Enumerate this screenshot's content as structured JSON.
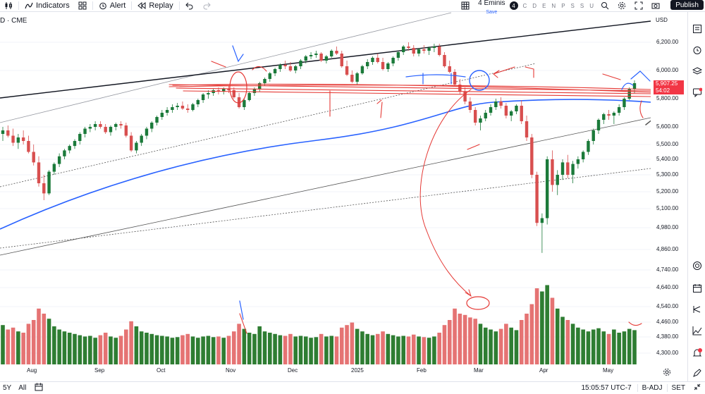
{
  "toolbar": {
    "indicators_label": "Indicators",
    "alert_label": "Alert",
    "replay_label": "Replay",
    "workspace_name": "4 Eminis",
    "workspace_status": "Save",
    "timeframe_count": "4",
    "timeframes": [
      "C",
      "D",
      "E",
      "N",
      "P",
      "S",
      "S",
      "U"
    ],
    "publish_label": "Publish"
  },
  "symbol_label": "D · CME",
  "currency": "USD",
  "price_badge": {
    "price": "5,907.25",
    "countdown": "54:02"
  },
  "chart_data": {
    "type": "candlestick",
    "price_ticks": [
      "6,200.00",
      "6,000.00",
      "5,800.00",
      "5,600.00",
      "5,500.00",
      "5,400.00",
      "5,300.00",
      "5,200.00",
      "5,100.00",
      "4,980.00",
      "4,860.00",
      "4,740.00",
      "4,640.00",
      "4,540.00",
      "4,460.00",
      "4,380.00",
      "4,300.00"
    ],
    "ylim": [
      4260,
      6300
    ],
    "time_ticks": [
      "Aug",
      "Sep",
      "Oct",
      "Nov",
      "Dec",
      "2025",
      "Feb",
      "Mar",
      "Apr",
      "May"
    ],
    "candles_key": "open,high,low,close,volume per day (approximate)",
    "candles": [
      [
        5560,
        5600,
        5520,
        5580,
        62
      ],
      [
        5580,
        5610,
        5540,
        5550,
        55
      ],
      [
        5550,
        5590,
        5490,
        5510,
        58
      ],
      [
        5510,
        5560,
        5470,
        5540,
        52
      ],
      [
        5540,
        5580,
        5500,
        5520,
        50
      ],
      [
        5520,
        5550,
        5440,
        5450,
        64
      ],
      [
        5450,
        5500,
        5360,
        5380,
        70
      ],
      [
        5380,
        5420,
        5230,
        5250,
        88
      ],
      [
        5250,
        5300,
        5150,
        5190,
        80
      ],
      [
        5190,
        5330,
        5180,
        5320,
        72
      ],
      [
        5320,
        5380,
        5300,
        5370,
        60
      ],
      [
        5370,
        5440,
        5350,
        5420,
        55
      ],
      [
        5420,
        5470,
        5400,
        5460,
        52
      ],
      [
        5460,
        5500,
        5440,
        5490,
        50
      ],
      [
        5490,
        5530,
        5470,
        5520,
        48
      ],
      [
        5520,
        5570,
        5500,
        5560,
        46
      ],
      [
        5560,
        5600,
        5540,
        5590,
        44
      ],
      [
        5590,
        5620,
        5570,
        5600,
        45
      ],
      [
        5600,
        5640,
        5580,
        5620,
        42
      ],
      [
        5620,
        5640,
        5590,
        5600,
        46
      ],
      [
        5600,
        5620,
        5560,
        5570,
        50
      ],
      [
        5570,
        5610,
        5550,
        5600,
        44
      ],
      [
        5600,
        5630,
        5580,
        5620,
        42
      ],
      [
        5620,
        5640,
        5590,
        5610,
        45
      ],
      [
        5610,
        5630,
        5540,
        5550,
        55
      ],
      [
        5550,
        5570,
        5450,
        5460,
        68
      ],
      [
        5460,
        5520,
        5440,
        5510,
        60
      ],
      [
        5510,
        5560,
        5490,
        5550,
        52
      ],
      [
        5550,
        5600,
        5530,
        5590,
        50
      ],
      [
        5590,
        5640,
        5570,
        5630,
        48
      ],
      [
        5630,
        5680,
        5610,
        5670,
        46
      ],
      [
        5670,
        5720,
        5650,
        5700,
        45
      ],
      [
        5700,
        5740,
        5680,
        5720,
        44
      ],
      [
        5720,
        5760,
        5700,
        5740,
        42
      ],
      [
        5740,
        5770,
        5720,
        5750,
        43
      ],
      [
        5750,
        5780,
        5720,
        5730,
        46
      ],
      [
        5730,
        5760,
        5700,
        5720,
        48
      ],
      [
        5720,
        5770,
        5710,
        5760,
        44
      ],
      [
        5760,
        5800,
        5740,
        5790,
        42
      ],
      [
        5790,
        5840,
        5770,
        5830,
        44
      ],
      [
        5830,
        5860,
        5800,
        5840,
        45
      ],
      [
        5840,
        5870,
        5820,
        5860,
        43
      ],
      [
        5860,
        5880,
        5830,
        5850,
        44
      ],
      [
        5850,
        5880,
        5830,
        5870,
        42
      ],
      [
        5870,
        5890,
        5840,
        5860,
        45
      ],
      [
        5860,
        5880,
        5800,
        5810,
        52
      ],
      [
        5810,
        5840,
        5730,
        5740,
        64
      ],
      [
        5740,
        5800,
        5720,
        5790,
        56
      ],
      [
        5790,
        5850,
        5780,
        5840,
        50
      ],
      [
        5840,
        5880,
        5820,
        5870,
        48
      ],
      [
        5870,
        5920,
        5850,
        5910,
        60
      ],
      [
        5910,
        5950,
        5890,
        5940,
        52
      ],
      [
        5940,
        5990,
        5920,
        5980,
        50
      ],
      [
        5980,
        6020,
        5960,
        6010,
        48
      ],
      [
        6010,
        6050,
        5990,
        6040,
        46
      ],
      [
        6040,
        6070,
        6010,
        6030,
        45
      ],
      [
        6030,
        6060,
        5990,
        6000,
        48
      ],
      [
        6000,
        6040,
        5980,
        6030,
        44
      ],
      [
        6030,
        6080,
        6010,
        6070,
        45
      ],
      [
        6070,
        6110,
        6050,
        6100,
        44
      ],
      [
        6100,
        6130,
        6080,
        6110,
        42
      ],
      [
        6110,
        6140,
        6090,
        6120,
        43
      ],
      [
        6120,
        6130,
        6060,
        6070,
        48
      ],
      [
        6070,
        6110,
        6050,
        6100,
        44
      ],
      [
        6100,
        6150,
        6090,
        6140,
        45
      ],
      [
        6140,
        6170,
        6110,
        6120,
        44
      ],
      [
        6120,
        6140,
        6020,
        6030,
        58
      ],
      [
        6030,
        6070,
        5960,
        5970,
        62
      ],
      [
        5970,
        6000,
        5910,
        5920,
        66
      ],
      [
        5920,
        5990,
        5900,
        5980,
        56
      ],
      [
        5980,
        6040,
        5970,
        6030,
        52
      ],
      [
        6030,
        6080,
        6010,
        6060,
        48
      ],
      [
        6060,
        6100,
        6040,
        6090,
        46
      ],
      [
        6090,
        6120,
        6050,
        6060,
        48
      ],
      [
        6060,
        6090,
        6000,
        6010,
        52
      ],
      [
        6010,
        6060,
        5990,
        6050,
        48
      ],
      [
        6050,
        6100,
        6030,
        6090,
        46
      ],
      [
        6090,
        6140,
        6070,
        6130,
        44
      ],
      [
        6130,
        6180,
        6110,
        6170,
        45
      ],
      [
        6170,
        6200,
        6140,
        6160,
        44
      ],
      [
        6160,
        6180,
        6100,
        6120,
        47
      ],
      [
        6120,
        6160,
        6100,
        6150,
        44
      ],
      [
        6150,
        6180,
        6120,
        6140,
        43
      ],
      [
        6140,
        6170,
        6110,
        6160,
        42
      ],
      [
        6160,
        6190,
        6130,
        6170,
        44
      ],
      [
        6170,
        6190,
        6100,
        6110,
        50
      ],
      [
        6110,
        6130,
        6020,
        6030,
        62
      ],
      [
        6030,
        6070,
        5980,
        5990,
        70
      ],
      [
        5990,
        6010,
        5890,
        5900,
        88
      ],
      [
        5900,
        5940,
        5830,
        5850,
        80
      ],
      [
        5850,
        5880,
        5760,
        5780,
        78
      ],
      [
        5780,
        5810,
        5700,
        5720,
        74
      ],
      [
        5720,
        5740,
        5610,
        5630,
        72
      ],
      [
        5630,
        5680,
        5580,
        5660,
        64
      ],
      [
        5660,
        5720,
        5640,
        5700,
        58
      ],
      [
        5700,
        5760,
        5680,
        5740,
        55
      ],
      [
        5740,
        5800,
        5720,
        5780,
        52
      ],
      [
        5780,
        5810,
        5730,
        5750,
        56
      ],
      [
        5750,
        5770,
        5660,
        5680,
        64
      ],
      [
        5680,
        5720,
        5640,
        5710,
        58
      ],
      [
        5710,
        5760,
        5690,
        5750,
        54
      ],
      [
        5750,
        5790,
        5620,
        5640,
        70
      ],
      [
        5640,
        5680,
        5520,
        5540,
        80
      ],
      [
        5540,
        5560,
        5280,
        5300,
        95
      ],
      [
        5300,
        5320,
        4990,
        5010,
        120
      ],
      [
        5010,
        5070,
        4840,
        5040,
        115
      ],
      [
        5040,
        5420,
        5000,
        5400,
        125
      ],
      [
        5400,
        5460,
        5200,
        5240,
        105
      ],
      [
        5240,
        5330,
        5180,
        5300,
        88
      ],
      [
        5300,
        5400,
        5270,
        5380,
        75
      ],
      [
        5380,
        5430,
        5280,
        5300,
        70
      ],
      [
        5300,
        5390,
        5250,
        5370,
        64
      ],
      [
        5370,
        5420,
        5340,
        5400,
        58
      ],
      [
        5400,
        5460,
        5380,
        5450,
        55
      ],
      [
        5450,
        5530,
        5430,
        5520,
        52
      ],
      [
        5520,
        5590,
        5500,
        5580,
        55
      ],
      [
        5580,
        5660,
        5560,
        5650,
        57
      ],
      [
        5650,
        5700,
        5620,
        5690,
        52
      ],
      [
        5690,
        5720,
        5650,
        5680,
        48
      ],
      [
        5680,
        5710,
        5620,
        5700,
        55
      ],
      [
        5700,
        5760,
        5680,
        5740,
        50
      ],
      [
        5740,
        5810,
        5720,
        5800,
        52
      ],
      [
        5800,
        5880,
        5790,
        5870,
        56
      ],
      [
        5870,
        5930,
        5840,
        5910,
        54
      ]
    ]
  },
  "time_display": "15:05:57 UTC-7",
  "bottom": {
    "range_5y": "5Y",
    "range_all": "All",
    "adj": "B-ADJ",
    "set": "SET"
  }
}
